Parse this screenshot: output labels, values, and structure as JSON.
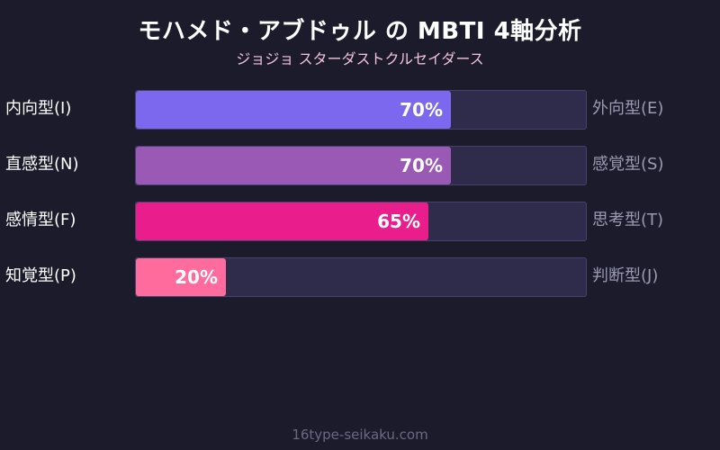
{
  "chart_data": {
    "type": "bar",
    "orientation": "horizontal",
    "title": "モハメド・アブドゥル の MBTI 4軸分析",
    "subtitle": "ジョジョ スターダストクルセイダース",
    "xlim": [
      0,
      100
    ],
    "grid": false,
    "rows": [
      {
        "left_label": "内向型(I)",
        "right_label": "外向型(E)",
        "value": 70,
        "value_label": "70%",
        "color": "#7b68ee"
      },
      {
        "left_label": "直感型(N)",
        "right_label": "感覚型(S)",
        "value": 70,
        "value_label": "70%",
        "color": "#9b59b6"
      },
      {
        "left_label": "感情型(F)",
        "right_label": "思考型(T)",
        "value": 65,
        "value_label": "65%",
        "color": "#e91e8c"
      },
      {
        "left_label": "知覚型(P)",
        "right_label": "判断型(J)",
        "value": 20,
        "value_label": "20%",
        "color": "#ff6b9d"
      }
    ]
  },
  "footer": {
    "text": "16type-seikaku.com"
  }
}
